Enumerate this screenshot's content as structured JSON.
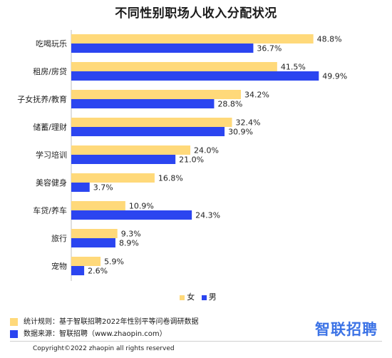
{
  "colors": {
    "female": "#FFD97A",
    "male": "#2B45F0",
    "axis": "#bfbfbf",
    "logo": "#3C73E6"
  },
  "chart_data": {
    "type": "bar",
    "orientation": "horizontal",
    "title": "不同性别职场人收入分配状况",
    "categories": [
      "吃喝玩乐",
      "租房/房贷",
      "子女抚养/教育",
      "储蓄/理财",
      "学习培训",
      "美容健身",
      "车贷/养车",
      "旅行",
      "宠物"
    ],
    "series": [
      {
        "name": "女",
        "values": [
          48.8,
          41.5,
          34.2,
          32.4,
          24.0,
          16.8,
          10.9,
          9.3,
          5.9
        ],
        "labels": [
          "48.8%",
          "41.5%",
          "34.2%",
          "32.4%",
          "24.0%",
          "16.8%",
          "10.9%",
          "9.3%",
          "5.9%"
        ]
      },
      {
        "name": "男",
        "values": [
          36.7,
          49.9,
          28.8,
          30.9,
          21.0,
          3.7,
          24.3,
          8.9,
          2.6
        ],
        "labels": [
          "36.7%",
          "49.9%",
          "28.8%",
          "30.9%",
          "21.0%",
          "3.7%",
          "24.3%",
          "8.9%",
          "2.6%"
        ]
      }
    ],
    "xlim": [
      0,
      50
    ],
    "grid": false,
    "legend_position": "bottom-center"
  },
  "legend": {
    "female": "女",
    "male": "男"
  },
  "notes": {
    "rule": "统计规则：基于智联招聘2022年性别平等问卷调研数据",
    "source": "数据来源：智联招聘（www.zhaopin.com）"
  },
  "logo_text": "智联招聘",
  "copyright": "Copyright©2022 zhaopin all rights reserved"
}
